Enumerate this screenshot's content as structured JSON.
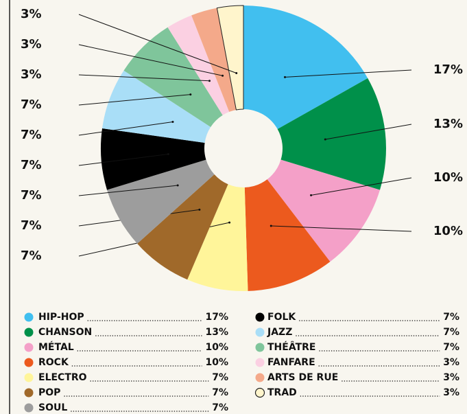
{
  "chart_data": {
    "type": "pie",
    "categories": [
      "HIP-HOP",
      "CHANSON",
      "MÉTAL",
      "ROCK",
      "ELECTRO",
      "POP",
      "SOUL",
      "FOLK",
      "JAZZ",
      "THÉÂTRE",
      "FANFARE",
      "ARTS DE RUE",
      "TRAD"
    ],
    "values": [
      17,
      13,
      10,
      10,
      7,
      7,
      7,
      7,
      7,
      7,
      3,
      3,
      3
    ],
    "value_labels": [
      "17%",
      "13%",
      "10%",
      "10%",
      "7%",
      "7%",
      "7%",
      "7%",
      "7%",
      "7%",
      "3%",
      "3%",
      "3%"
    ],
    "colors": [
      "#41bfef",
      "#00904a",
      "#f4a0c8",
      "#ec5a1e",
      "#fff59a",
      "#a0692a",
      "#9d9d9d",
      "#000000",
      "#a9def7",
      "#7fc59b",
      "#fbd0e2",
      "#f4a98a",
      "#fff5cc"
    ]
  }
}
